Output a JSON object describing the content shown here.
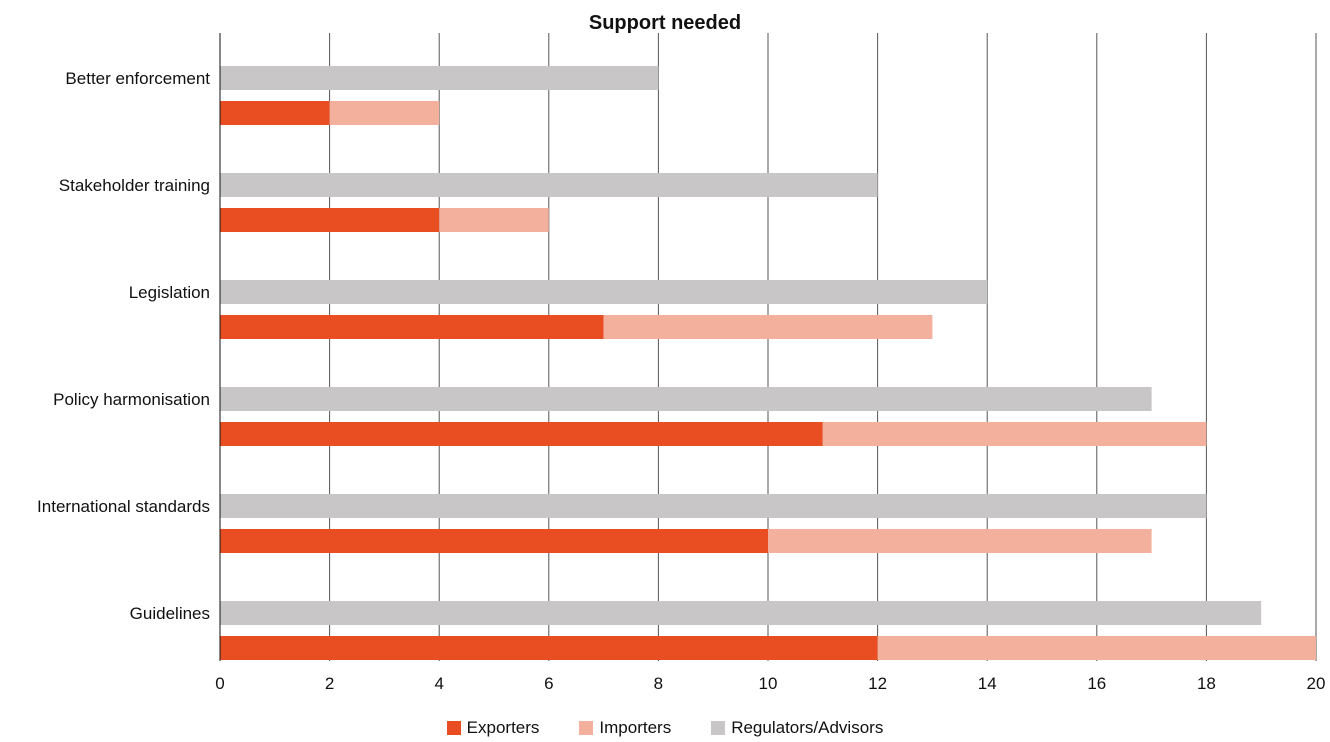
{
  "chart_data": {
    "type": "bar",
    "orientation": "horizontal",
    "stacked_groups": [
      [
        "Exporters",
        "Importers"
      ],
      [
        "Regulators/Advisors"
      ]
    ],
    "title": "Support needed",
    "xlabel": "",
    "ylabel": "",
    "xlim": [
      0,
      20
    ],
    "xticks": [
      0,
      2,
      4,
      6,
      8,
      10,
      12,
      14,
      16,
      18,
      20
    ],
    "grid": "vertical",
    "legend_position": "bottom",
    "categories": [
      "Better enforcement",
      "Stakeholder training",
      "Legislation",
      "Policy harmonisation",
      "International standards",
      "Guidelines"
    ],
    "series": [
      {
        "name": "Exporters",
        "color": "#e84e22",
        "values": [
          2,
          4,
          7,
          11,
          10,
          12
        ]
      },
      {
        "name": "Importers",
        "color": "#f3b09d",
        "values": [
          2,
          2,
          6,
          7,
          7,
          8
        ]
      },
      {
        "name": "Regulators/Advisors",
        "color": "#c8c6c6",
        "values": [
          8,
          12,
          14,
          17,
          18,
          19
        ]
      }
    ]
  }
}
